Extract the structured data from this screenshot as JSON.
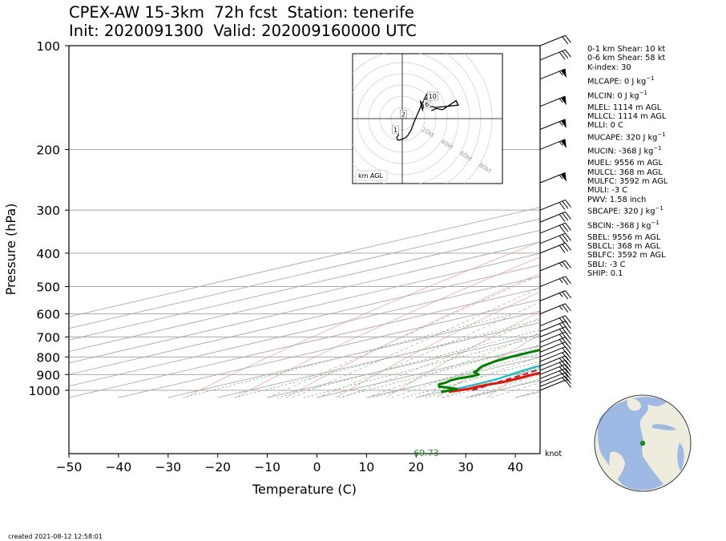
{
  "header": {
    "title_line1": "CPEX-AW 15-3km  72h fcst  Station: tenerife",
    "title_line2": "Init: 2020091300  Valid: 202009160000 UTC"
  },
  "footer": {
    "created": "created 2021-08-12 12:58:01"
  },
  "stats": [
    {
      "label": "0-1 km Shear: 10 kt"
    },
    {
      "label": "0-6 km Shear: 58 kt"
    },
    {
      "label": "K-index: 30"
    },
    {
      "label": "MLCAPE: 0 J kg",
      "sup": "−1",
      "gap": true
    },
    {
      "label": "MLCIN: 0 J kg",
      "sup": "−1",
      "gap": true
    },
    {
      "label": "MLEL: 1114 m AGL",
      "gap": true
    },
    {
      "label": "MLLCL: 1114 m AGL"
    },
    {
      "label": "MLLI: 0 C"
    },
    {
      "label": "MUCAPE: 320 J kg",
      "sup": "−1"
    },
    {
      "label": "MUCIN: -368 J kg",
      "sup": "−1",
      "gap": true
    },
    {
      "label": "MUEL: 9556 m AGL",
      "gap": true
    },
    {
      "label": "MULCL: 368 m AGL"
    },
    {
      "label": "MULFC: 3592 m AGL"
    },
    {
      "label": "MULI: -3 C"
    },
    {
      "label": "PWV: 1.58 inch"
    },
    {
      "label": "SBCAPE: 320 J kg",
      "sup": "−1"
    },
    {
      "label": "SBCIN: -368 J kg",
      "sup": "−1",
      "gap": true
    },
    {
      "label": "SBEL: 9556 m AGL",
      "gap": true
    },
    {
      "label": "SBLCL: 368 m AGL"
    },
    {
      "label": "SBLFC: 3592 m AGL"
    },
    {
      "label": "SBLI: -3 C"
    },
    {
      "label": "SHIP: 0.1"
    }
  ],
  "chart_data": [
    {
      "type": "line",
      "subtype": "skew-T log-P diagram",
      "xlabel": "Temperature (C)",
      "ylabel": "Pressure (hPa)",
      "xlim": [
        -50,
        45
      ],
      "ylim": [
        1050,
        100
      ],
      "y_scale": "log",
      "x_ticks": [
        -50,
        -40,
        -30,
        -20,
        -10,
        0,
        10,
        20,
        30,
        40
      ],
      "y_ticks": [
        100,
        200,
        300,
        400,
        500,
        600,
        700,
        800,
        900,
        1000
      ],
      "wind_unit_label": "knot",
      "surface_annotation": "69.73",
      "colors": {
        "temperature": "#e8120c",
        "dewpoint": "#008000",
        "virtual_temperature": "#19c0c8",
        "parcel": "#a52a2a"
      },
      "series": [
        {
          "key": "temperature",
          "pressure": [
            1010,
            1000,
            990,
            975,
            960,
            950,
            925,
            900,
            875,
            850,
            825,
            800,
            775,
            750,
            725,
            700,
            680,
            660,
            650,
            625,
            600,
            550,
            500,
            450,
            400,
            350,
            300,
            250,
            200,
            175,
            150,
            130,
            115,
            100
          ],
          "temperature": [
            21.5,
            22.3,
            23,
            22.8,
            23.3,
            24,
            24,
            23.5,
            23.8,
            24,
            22.2,
            21.6,
            18.8,
            16,
            12.5,
            8.5,
            5,
            3,
            3,
            0.5,
            -1.5,
            -5.5,
            -10.5,
            -15,
            -21.5,
            -28.5,
            -36.5,
            -46.5,
            -57.5,
            -62.5,
            -66,
            -68.5,
            -66.5,
            -63.5
          ]
        },
        {
          "key": "dewpoint",
          "pressure": [
            1010,
            1000,
            990,
            975,
            960,
            950,
            935,
            925,
            910,
            900,
            885,
            875,
            860,
            850,
            825,
            800,
            775,
            750,
            725,
            700,
            680,
            660,
            650,
            625,
            600,
            550,
            500,
            450,
            400,
            350,
            300,
            250,
            200,
            175,
            150,
            130,
            115,
            100
          ],
          "dewpoint": [
            20,
            20.5,
            20.5,
            15,
            13,
            13,
            12,
            11.9,
            12.8,
            12.6,
            9.5,
            8.7,
            7,
            6,
            4.5,
            3.8,
            3.6,
            3.6,
            3.8,
            3.9,
            3.9,
            3.9,
            3.5,
            0.5,
            -2.5,
            -7,
            -12,
            -17,
            -24.5,
            -32,
            -40.5,
            -51.5,
            -62.5,
            -68,
            -72,
            -75.5,
            -75,
            -73.5
          ]
        },
        {
          "key": "virtual_temperature",
          "pressure": [
            1010,
            1000,
            990,
            975,
            960,
            950,
            925,
            900,
            875,
            850,
            825,
            800,
            775,
            750,
            725,
            700,
            680,
            660,
            650,
            625,
            600,
            550,
            500,
            450,
            400,
            350,
            300,
            250,
            200,
            175,
            150,
            130,
            115,
            100
          ],
          "virtual_temperature": [
            20,
            20.5,
            20.5,
            20.7,
            20.6,
            20.5,
            20.2,
            19,
            18,
            17.3,
            15.6,
            14.7,
            13.3,
            12.3,
            11,
            10,
            8.8,
            7.2,
            6.5,
            3.5,
            -0.5,
            -5,
            -10,
            -14.5,
            -21,
            -28,
            -36,
            -46,
            -57.5,
            -62.5,
            -66,
            -68.5,
            -66.5,
            -63.5
          ]
        },
        {
          "key": "parcel",
          "pressure": [
            1000,
            950,
            900,
            850,
            800,
            750,
            700,
            650,
            600,
            550,
            500,
            450,
            400,
            350,
            300,
            250,
            200,
            150,
            120,
            100
          ],
          "parcel": [
            25,
            23.2,
            21.7,
            19.5,
            17.6,
            15.6,
            13.5,
            10.5,
            7.2,
            3,
            -1.8,
            -7.6,
            -14.3,
            -22,
            -31.5,
            -42.5,
            -56,
            -73,
            -86,
            -100
          ]
        }
      ],
      "wind_barbs": [
        {
          "p": 1000,
          "kt": 10
        },
        {
          "p": 975,
          "kt": 15
        },
        {
          "p": 950,
          "kt": 20
        },
        {
          "p": 925,
          "kt": 25
        },
        {
          "p": 900,
          "kt": 25
        },
        {
          "p": 875,
          "kt": 25
        },
        {
          "p": 850,
          "kt": 25
        },
        {
          "p": 825,
          "kt": 20
        },
        {
          "p": 800,
          "kt": 20
        },
        {
          "p": 775,
          "kt": 20
        },
        {
          "p": 750,
          "kt": 25
        },
        {
          "p": 725,
          "kt": 25
        },
        {
          "p": 700,
          "kt": 25
        },
        {
          "p": 675,
          "kt": 25
        },
        {
          "p": 650,
          "kt": 25
        },
        {
          "p": 600,
          "kt": 25
        },
        {
          "p": 550,
          "kt": 25
        },
        {
          "p": 500,
          "kt": 25
        },
        {
          "p": 450,
          "kt": 25
        },
        {
          "p": 400,
          "kt": 30
        },
        {
          "p": 375,
          "kt": 30
        },
        {
          "p": 350,
          "kt": 30
        },
        {
          "p": 325,
          "kt": 30
        },
        {
          "p": 300,
          "kt": 30
        },
        {
          "p": 250,
          "kt": 55
        },
        {
          "p": 200,
          "kt": 55
        },
        {
          "p": 175,
          "kt": 55
        },
        {
          "p": 150,
          "kt": 55
        },
        {
          "p": 125,
          "kt": 55
        },
        {
          "p": 110,
          "kt": 30
        },
        {
          "p": 100,
          "kt": 20
        }
      ]
    },
    {
      "type": "line",
      "subtype": "hodograph",
      "unit_label": "km AGL",
      "ring_labels": [
        "20kt",
        "40kt",
        "60kt",
        "80kt"
      ],
      "u": [
        -3,
        -5,
        -4,
        -2,
        3,
        5,
        8,
        11,
        14,
        17,
        20,
        22,
        24,
        23,
        20,
        18,
        16,
        18,
        30,
        50,
        48,
        36,
        30,
        26
      ],
      "v": [
        -14,
        -17,
        -19,
        -19,
        -17,
        -15,
        -10,
        -2,
        5,
        12,
        18,
        22,
        23,
        20,
        15,
        8,
        16,
        12,
        10,
        12,
        16,
        8,
        9,
        7
      ],
      "height_labels": [
        {
          "label": "1",
          "u": -6,
          "v": -10
        },
        {
          "label": "2",
          "u": 1,
          "v": 4
        },
        {
          "label": "6",
          "u": 22,
          "v": 13
        },
        {
          "label": "10",
          "u": 27,
          "v": 20
        }
      ]
    }
  ]
}
